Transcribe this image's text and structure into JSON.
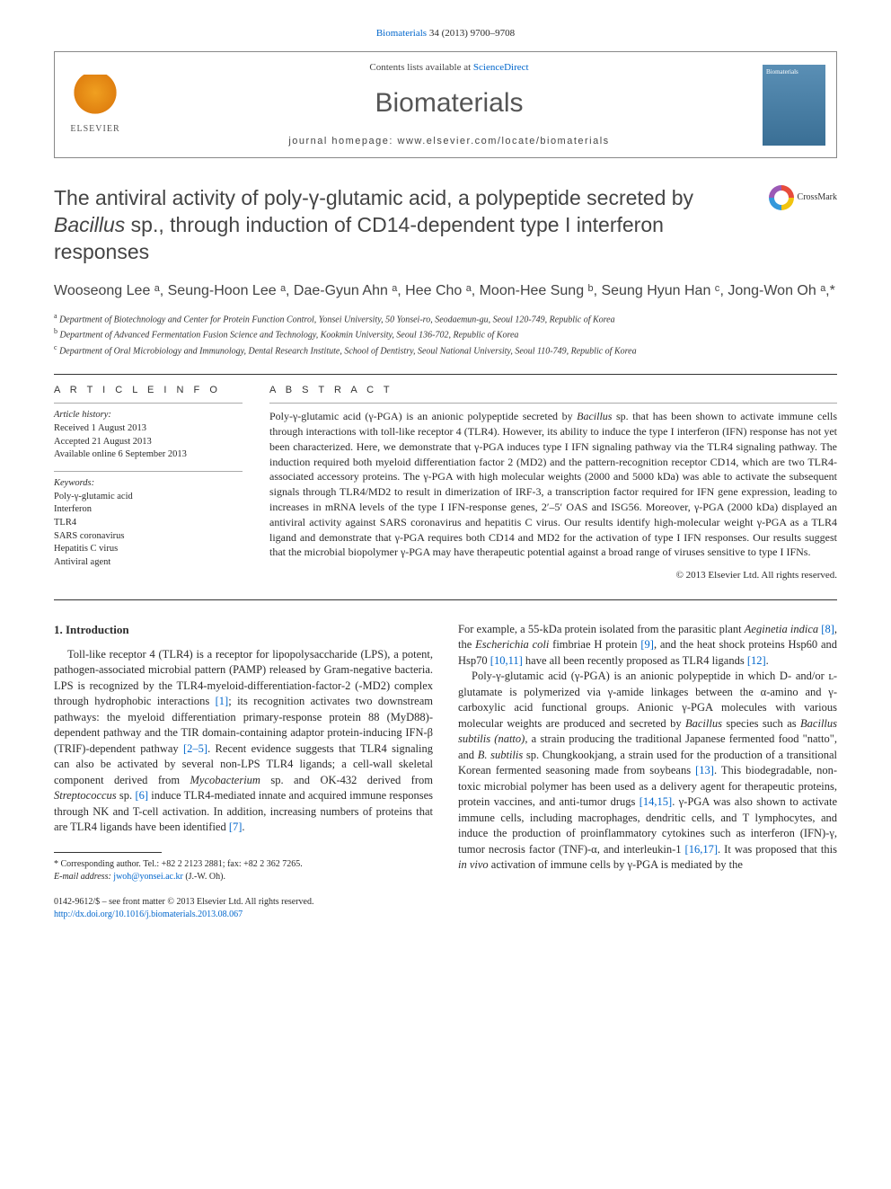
{
  "citation": {
    "journal": "Biomaterials",
    "ref": " 34 (2013) 9700–9708"
  },
  "headerBox": {
    "publisher": "ELSEVIER",
    "contentsPrefix": "Contents lists available at ",
    "contentsLink": "ScienceDirect",
    "journalName": "Biomaterials",
    "homepagePrefix": "journal homepage: ",
    "homepageUrl": "www.elsevier.com/locate/biomaterials",
    "coverLabel": "Biomaterials"
  },
  "crossmark": "CrossMark",
  "title": {
    "pre": "The antiviral activity of poly-γ-glutamic acid, a polypeptide secreted by ",
    "italic": "Bacillus",
    "post": " sp., through induction of CD14-dependent type I interferon responses"
  },
  "authors": "Wooseong Lee ᵃ, Seung-Hoon Lee ᵃ, Dae-Gyun Ahn ᵃ, Hee Cho ᵃ, Moon-Hee Sung ᵇ, Seung Hyun Han ᶜ, Jong-Won Oh ᵃ,*",
  "affiliations": [
    {
      "sup": "a",
      "text": "Department of Biotechnology and Center for Protein Function Control, Yonsei University, 50 Yonsei-ro, Seodaemun-gu, Seoul 120-749, Republic of Korea"
    },
    {
      "sup": "b",
      "text": "Department of Advanced Fermentation Fusion Science and Technology, Kookmin University, Seoul 136-702, Republic of Korea"
    },
    {
      "sup": "c",
      "text": "Department of Oral Microbiology and Immunology, Dental Research Institute, School of Dentistry, Seoul National University, Seoul 110-749, Republic of Korea"
    }
  ],
  "info": {
    "headArticle": "A R T I C L E   I N F O",
    "headAbstract": "A B S T R A C T",
    "historyLabel": "Article history:",
    "history": [
      "Received 1 August 2013",
      "Accepted 21 August 2013",
      "Available online 6 September 2013"
    ],
    "keywordsLabel": "Keywords:",
    "keywords": [
      "Poly-γ-glutamic acid",
      "Interferon",
      "TLR4",
      "SARS coronavirus",
      "Hepatitis C virus",
      "Antiviral agent"
    ]
  },
  "abstract": {
    "p1a": "Poly-γ-glutamic acid (γ-PGA) is an anionic polypeptide secreted by ",
    "p1it": "Bacillus",
    "p1b": " sp. that has been shown to activate immune cells through interactions with toll-like receptor 4 (TLR4). However, its ability to induce the type I interferon (IFN) response has not yet been characterized. Here, we demonstrate that γ-PGA induces type I IFN signaling pathway via the TLR4 signaling pathway. The induction required both myeloid differentiation factor 2 (MD2) and the pattern-recognition receptor CD14, which are two TLR4-associated accessory proteins. The γ-PGA with high molecular weights (2000 and 5000 kDa) was able to activate the subsequent signals through TLR4/MD2 to result in dimerization of IRF-3, a transcription factor required for IFN gene expression, leading to increases in mRNA levels of the type I IFN-response genes, 2′–5′ OAS and ISG56. Moreover, γ-PGA (2000 kDa) displayed an antiviral activity against SARS coronavirus and hepatitis C virus. Our results identify high-molecular weight γ-PGA as a TLR4 ligand and demonstrate that γ-PGA requires both CD14 and MD2 for the activation of type I IFN responses. Our results suggest that the microbial biopolymer γ-PGA may have therapeutic potential against a broad range of viruses sensitive to type I IFNs.",
    "copyright": "© 2013 Elsevier Ltd. All rights reserved."
  },
  "introHead": "1. Introduction",
  "col1": {
    "p1a": "Toll-like receptor 4 (TLR4) is a receptor for lipopolysaccharide (LPS), a potent, pathogen-associated microbial pattern (PAMP) released by Gram-negative bacteria. LPS is recognized by the TLR4-myeloid-differentiation-factor-2 (-MD2) complex through hydrophobic interactions ",
    "r1": "[1]",
    "p1b": "; its recognition activates two downstream pathways: the myeloid differentiation primary-response protein 88 (MyD88)-dependent pathway and the TIR domain-containing adaptor protein-inducing IFN-β (TRIF)-dependent pathway ",
    "r2": "[2–5]",
    "p1c": ". Recent evidence suggests that TLR4 signaling can also be activated by several non-LPS TLR4 ligands; a cell-wall skeletal component derived from ",
    "it1": "Mycobacterium",
    "p1d": " sp. and OK-432 derived from ",
    "it2": "Streptococcus",
    "p1e": " sp. ",
    "r3": "[6]",
    "p1f": " induce TLR4-mediated innate and acquired immune responses through NK and T-cell activation. In addition, increasing numbers of proteins that are TLR4 ligands have been identified ",
    "r4": "[7]",
    "p1g": "."
  },
  "col2": {
    "p1a": "For example, a 55-kDa protein isolated from the parasitic plant ",
    "it1": "Aeginetia indica ",
    "r1": "[8]",
    "p1b": ", the ",
    "it2": "Escherichia coli",
    "p1c": " fimbriae H protein ",
    "r2": "[9]",
    "p1d": ", and the heat shock proteins Hsp60 and Hsp70 ",
    "r3": "[10,11]",
    "p1e": " have all been recently proposed as TLR4 ligands ",
    "r4": "[12]",
    "p1f": ".",
    "p2a": "Poly-γ-glutamic acid (γ-PGA) is an anionic polypeptide in which D- and/or ʟ-glutamate is polymerized via γ-amide linkages between the α-amino and γ-carboxylic acid functional groups. Anionic γ-PGA molecules with various molecular weights are produced and secreted by ",
    "it3": "Bacillus",
    "p2b": " species such as ",
    "it4": "Bacillus subtilis (natto)",
    "p2c": ", a strain producing the traditional Japanese fermented food \"natto\", and ",
    "it5": "B. subtilis",
    "p2d": " sp. Chungkookjang, a strain used for the production of a transitional Korean fermented seasoning made from soybeans ",
    "r5": "[13]",
    "p2e": ". This biodegradable, non-toxic microbial polymer has been used as a delivery agent for therapeutic proteins, protein vaccines, and anti-tumor drugs ",
    "r6": "[14,15]",
    "p2f": ". γ-PGA was also shown to activate immune cells, including macrophages, dendritic cells, and T lymphocytes, and induce the production of proinflammatory cytokines such as interferon (IFN)-γ, tumor necrosis factor (TNF)-α, and interleukin-1 ",
    "r7": "[16,17]",
    "p2g": ". It was proposed that this ",
    "it6": "in vivo",
    "p2h": " activation of immune cells by γ-PGA is mediated by the"
  },
  "footnote": {
    "corr": "* Corresponding author. Tel.: +82 2 2123 2881; fax: +82 2 362 7265.",
    "emailLabel": "E-mail address: ",
    "email": "jwoh@yonsei.ac.kr",
    "emailSuffix": " (J.-W. Oh)."
  },
  "footer": {
    "line1": "0142-9612/$ – see front matter © 2013 Elsevier Ltd. All rights reserved.",
    "doi": "http://dx.doi.org/10.1016/j.biomaterials.2013.08.067"
  }
}
